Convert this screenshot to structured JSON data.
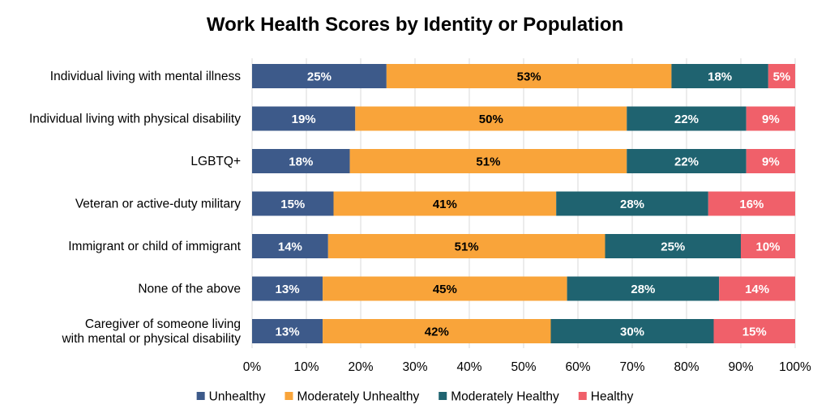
{
  "chart_data": {
    "type": "bar",
    "orientation": "horizontal",
    "stacked": true,
    "title": "Work Health Scores by Identity or Population",
    "categories": [
      [
        "Individual living with mental illness"
      ],
      [
        "Individual living with physical disability"
      ],
      [
        "LGBTQ+"
      ],
      [
        "Veteran or active-duty military"
      ],
      [
        "Immigrant or child of immigrant"
      ],
      [
        "None of the above"
      ],
      [
        "Caregiver of someone living",
        "with mental or physical disability"
      ]
    ],
    "series": [
      {
        "name": "Unhealthy",
        "color": "#3d5a8a",
        "label_color": "#ffffff",
        "values": [
          25,
          19,
          18,
          15,
          14,
          13,
          13
        ]
      },
      {
        "name": "Moderately Unhealthy",
        "color": "#f9a43a",
        "label_color": "#000000",
        "values": [
          53,
          50,
          51,
          41,
          51,
          45,
          42
        ]
      },
      {
        "name": "Moderately Healthy",
        "color": "#1f6370",
        "label_color": "#ffffff",
        "values": [
          18,
          22,
          22,
          28,
          25,
          28,
          30
        ]
      },
      {
        "name": "Healthy",
        "color": "#f0606a",
        "label_color": "#ffffff",
        "values": [
          5,
          9,
          9,
          16,
          10,
          14,
          15
        ]
      }
    ],
    "xlim": [
      0,
      100
    ],
    "x_ticks": [
      "0%",
      "10%",
      "20%",
      "30%",
      "40%",
      "50%",
      "60%",
      "70%",
      "80%",
      "90%",
      "100%"
    ],
    "value_suffix": "%",
    "grid": true,
    "legend_position": "bottom"
  }
}
